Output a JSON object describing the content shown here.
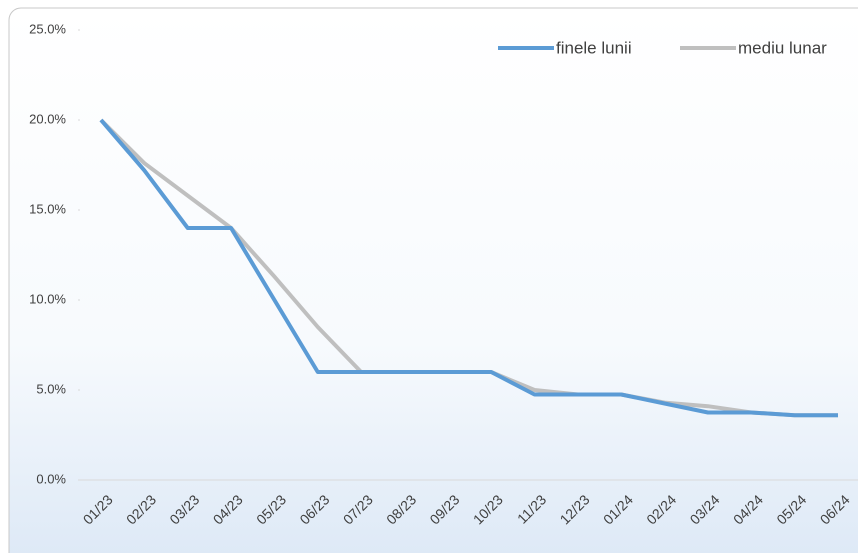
{
  "chart_data": {
    "type": "line",
    "categories": [
      "01/23",
      "02/23",
      "03/23",
      "04/23",
      "05/23",
      "06/23",
      "07/23",
      "08/23",
      "09/23",
      "10/23",
      "11/23",
      "12/23",
      "01/24",
      "02/24",
      "03/24",
      "04/24",
      "05/24",
      "06/24"
    ],
    "series": [
      {
        "name": "finele lunii",
        "color": "#5b9bd5",
        "values": [
          20,
          17.2,
          14,
          14,
          10,
          6,
          6,
          6,
          6,
          6,
          4.75,
          4.75,
          4.75,
          4.25,
          3.75,
          3.75,
          3.6,
          3.6
        ]
      },
      {
        "name": "mediu lunar",
        "color": "#bfbfbf",
        "values": [
          20,
          17.6,
          15.8,
          14,
          11.3,
          8.5,
          6,
          6,
          6,
          6,
          5,
          4.75,
          4.75,
          4.3,
          4.1,
          3.75,
          3.6,
          3.6
        ]
      }
    ],
    "ylim": [
      0,
      25
    ],
    "yticks": [
      {
        "value": 0,
        "label": "0.0%"
      },
      {
        "value": 5,
        "label": "5.0%"
      },
      {
        "value": 10,
        "label": "10.0%"
      },
      {
        "value": 15,
        "label": "15.0%"
      },
      {
        "value": 20,
        "label": "20.0%"
      },
      {
        "value": 25,
        "label": "25.0%"
      }
    ],
    "legend": "top-right"
  }
}
